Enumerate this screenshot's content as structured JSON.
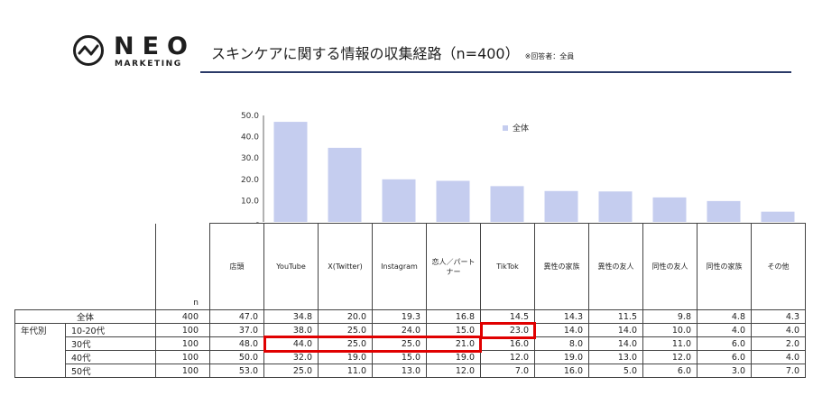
{
  "header": {
    "logo_name": "NEO",
    "logo_sub": "MARKETING",
    "logo_icon": "neo-logo-icon",
    "title": "スキンケアに関する情報の収集経路（n=400）",
    "note": "※回答者：全員",
    "rule_color": "#2b3a68"
  },
  "chart_data": {
    "type": "bar",
    "categories": [
      "店頭",
      "YouTube",
      "X(Twitter)",
      "Instagram",
      "恋人／パートナー",
      "TikTok",
      "異性の家族",
      "異性の友人",
      "同性の友人",
      "同性の家族",
      "その他"
    ],
    "series": [
      {
        "name": "全体",
        "values": [
          47.0,
          34.8,
          20.0,
          19.3,
          16.8,
          14.5,
          14.3,
          11.5,
          9.8,
          4.8,
          4.3
        ],
        "color": "#c5cdef"
      }
    ],
    "ylim": [
      0,
      50
    ],
    "yticks": [
      "50.0",
      "40.0",
      "30.0",
      "20.0",
      "10.0",
      "-"
    ],
    "legend_position": "top-center",
    "grid": false
  },
  "table": {
    "n_label": "n",
    "rows": [
      {
        "group": "",
        "label": "全体",
        "n": "400",
        "values": [
          "47.0",
          "34.8",
          "20.0",
          "19.3",
          "16.8",
          "14.5",
          "14.3",
          "11.5",
          "9.8",
          "4.8",
          "4.3"
        ]
      },
      {
        "group": "年代別",
        "label": "10-20代",
        "n": "100",
        "values": [
          "37.0",
          "38.0",
          "25.0",
          "24.0",
          "15.0",
          "23.0",
          "14.0",
          "14.0",
          "10.0",
          "4.0",
          "4.0"
        ]
      },
      {
        "group": "",
        "label": "30代",
        "n": "100",
        "values": [
          "48.0",
          "44.0",
          "25.0",
          "25.0",
          "21.0",
          "16.0",
          "8.0",
          "14.0",
          "11.0",
          "6.0",
          "2.0"
        ]
      },
      {
        "group": "",
        "label": "40代",
        "n": "100",
        "values": [
          "50.0",
          "32.0",
          "19.0",
          "15.0",
          "19.0",
          "12.0",
          "19.0",
          "13.0",
          "12.0",
          "6.0",
          "4.0"
        ]
      },
      {
        "group": "",
        "label": "50代",
        "n": "100",
        "values": [
          "53.0",
          "25.0",
          "11.0",
          "13.0",
          "12.0",
          "7.0",
          "16.0",
          "5.0",
          "6.0",
          "3.0",
          "7.0"
        ]
      }
    ],
    "highlight_color": "#e00000"
  }
}
